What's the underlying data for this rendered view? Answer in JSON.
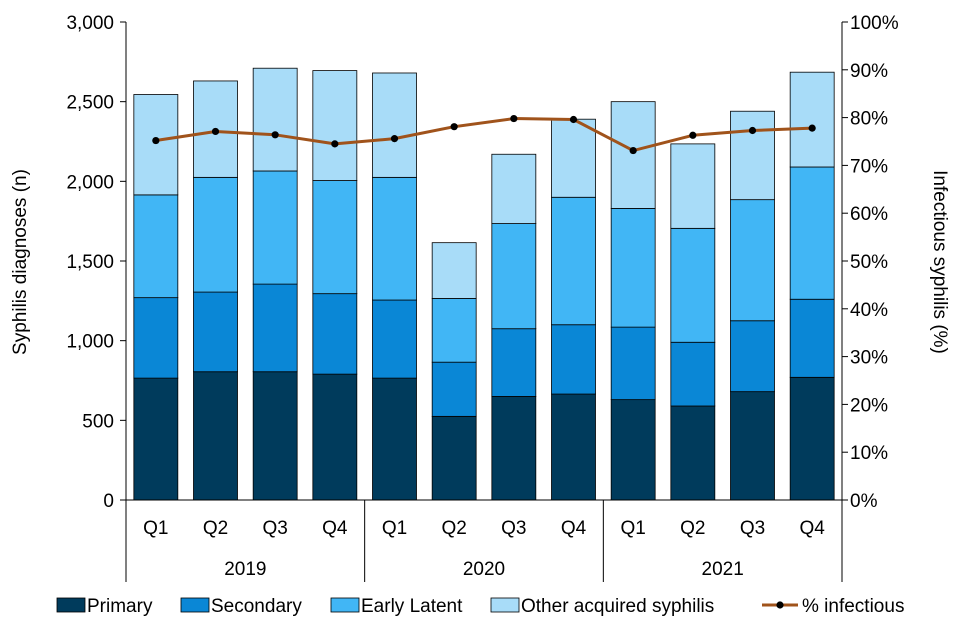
{
  "chart_data": {
    "type": "bar",
    "stacked": true,
    "categories": [
      "Q1",
      "Q2",
      "Q3",
      "Q4",
      "Q1",
      "Q2",
      "Q3",
      "Q4",
      "Q1",
      "Q2",
      "Q3",
      "Q4"
    ],
    "years": [
      {
        "label": "2019",
        "count": 4
      },
      {
        "label": "2020",
        "count": 4
      },
      {
        "label": "2021",
        "count": 4
      }
    ],
    "series": [
      {
        "name": "Primary",
        "color": "#003b5c",
        "values": [
          765,
          805,
          805,
          790,
          765,
          525,
          650,
          665,
          630,
          590,
          680,
          770
        ]
      },
      {
        "name": "Secondary",
        "color": "#0a87d6",
        "values": [
          505,
          500,
          550,
          505,
          490,
          340,
          425,
          435,
          455,
          400,
          445,
          490
        ]
      },
      {
        "name": "Early Latent",
        "color": "#41b6f5",
        "values": [
          645,
          720,
          710,
          710,
          770,
          400,
          660,
          800,
          745,
          715,
          760,
          830
        ]
      },
      {
        "name": "Other acquired syphilis",
        "color": "#a8dcf8",
        "values": [
          630,
          605,
          645,
          690,
          655,
          350,
          435,
          490,
          670,
          530,
          555,
          595
        ]
      }
    ],
    "line_series": {
      "name": "% infectious",
      "color": "#a0531b",
      "values": [
        75.2,
        77.1,
        76.4,
        74.5,
        75.6,
        78.1,
        79.8,
        79.6,
        73.1,
        76.3,
        77.3,
        77.8
      ]
    },
    "ylabel": "Syphilis diagnoses (n)",
    "y2label": "Infectious syphilis (%)",
    "ylim": [
      0,
      3000
    ],
    "y2lim": [
      0,
      100
    ],
    "yticks": [
      "0",
      "500",
      "1,000",
      "1,500",
      "2,000",
      "2,500",
      "3,000"
    ],
    "y2ticks": [
      "0%",
      "10%",
      "20%",
      "30%",
      "40%",
      "50%",
      "60%",
      "70%",
      "80%",
      "90%",
      "100%"
    ],
    "legend_position": "bottom"
  }
}
